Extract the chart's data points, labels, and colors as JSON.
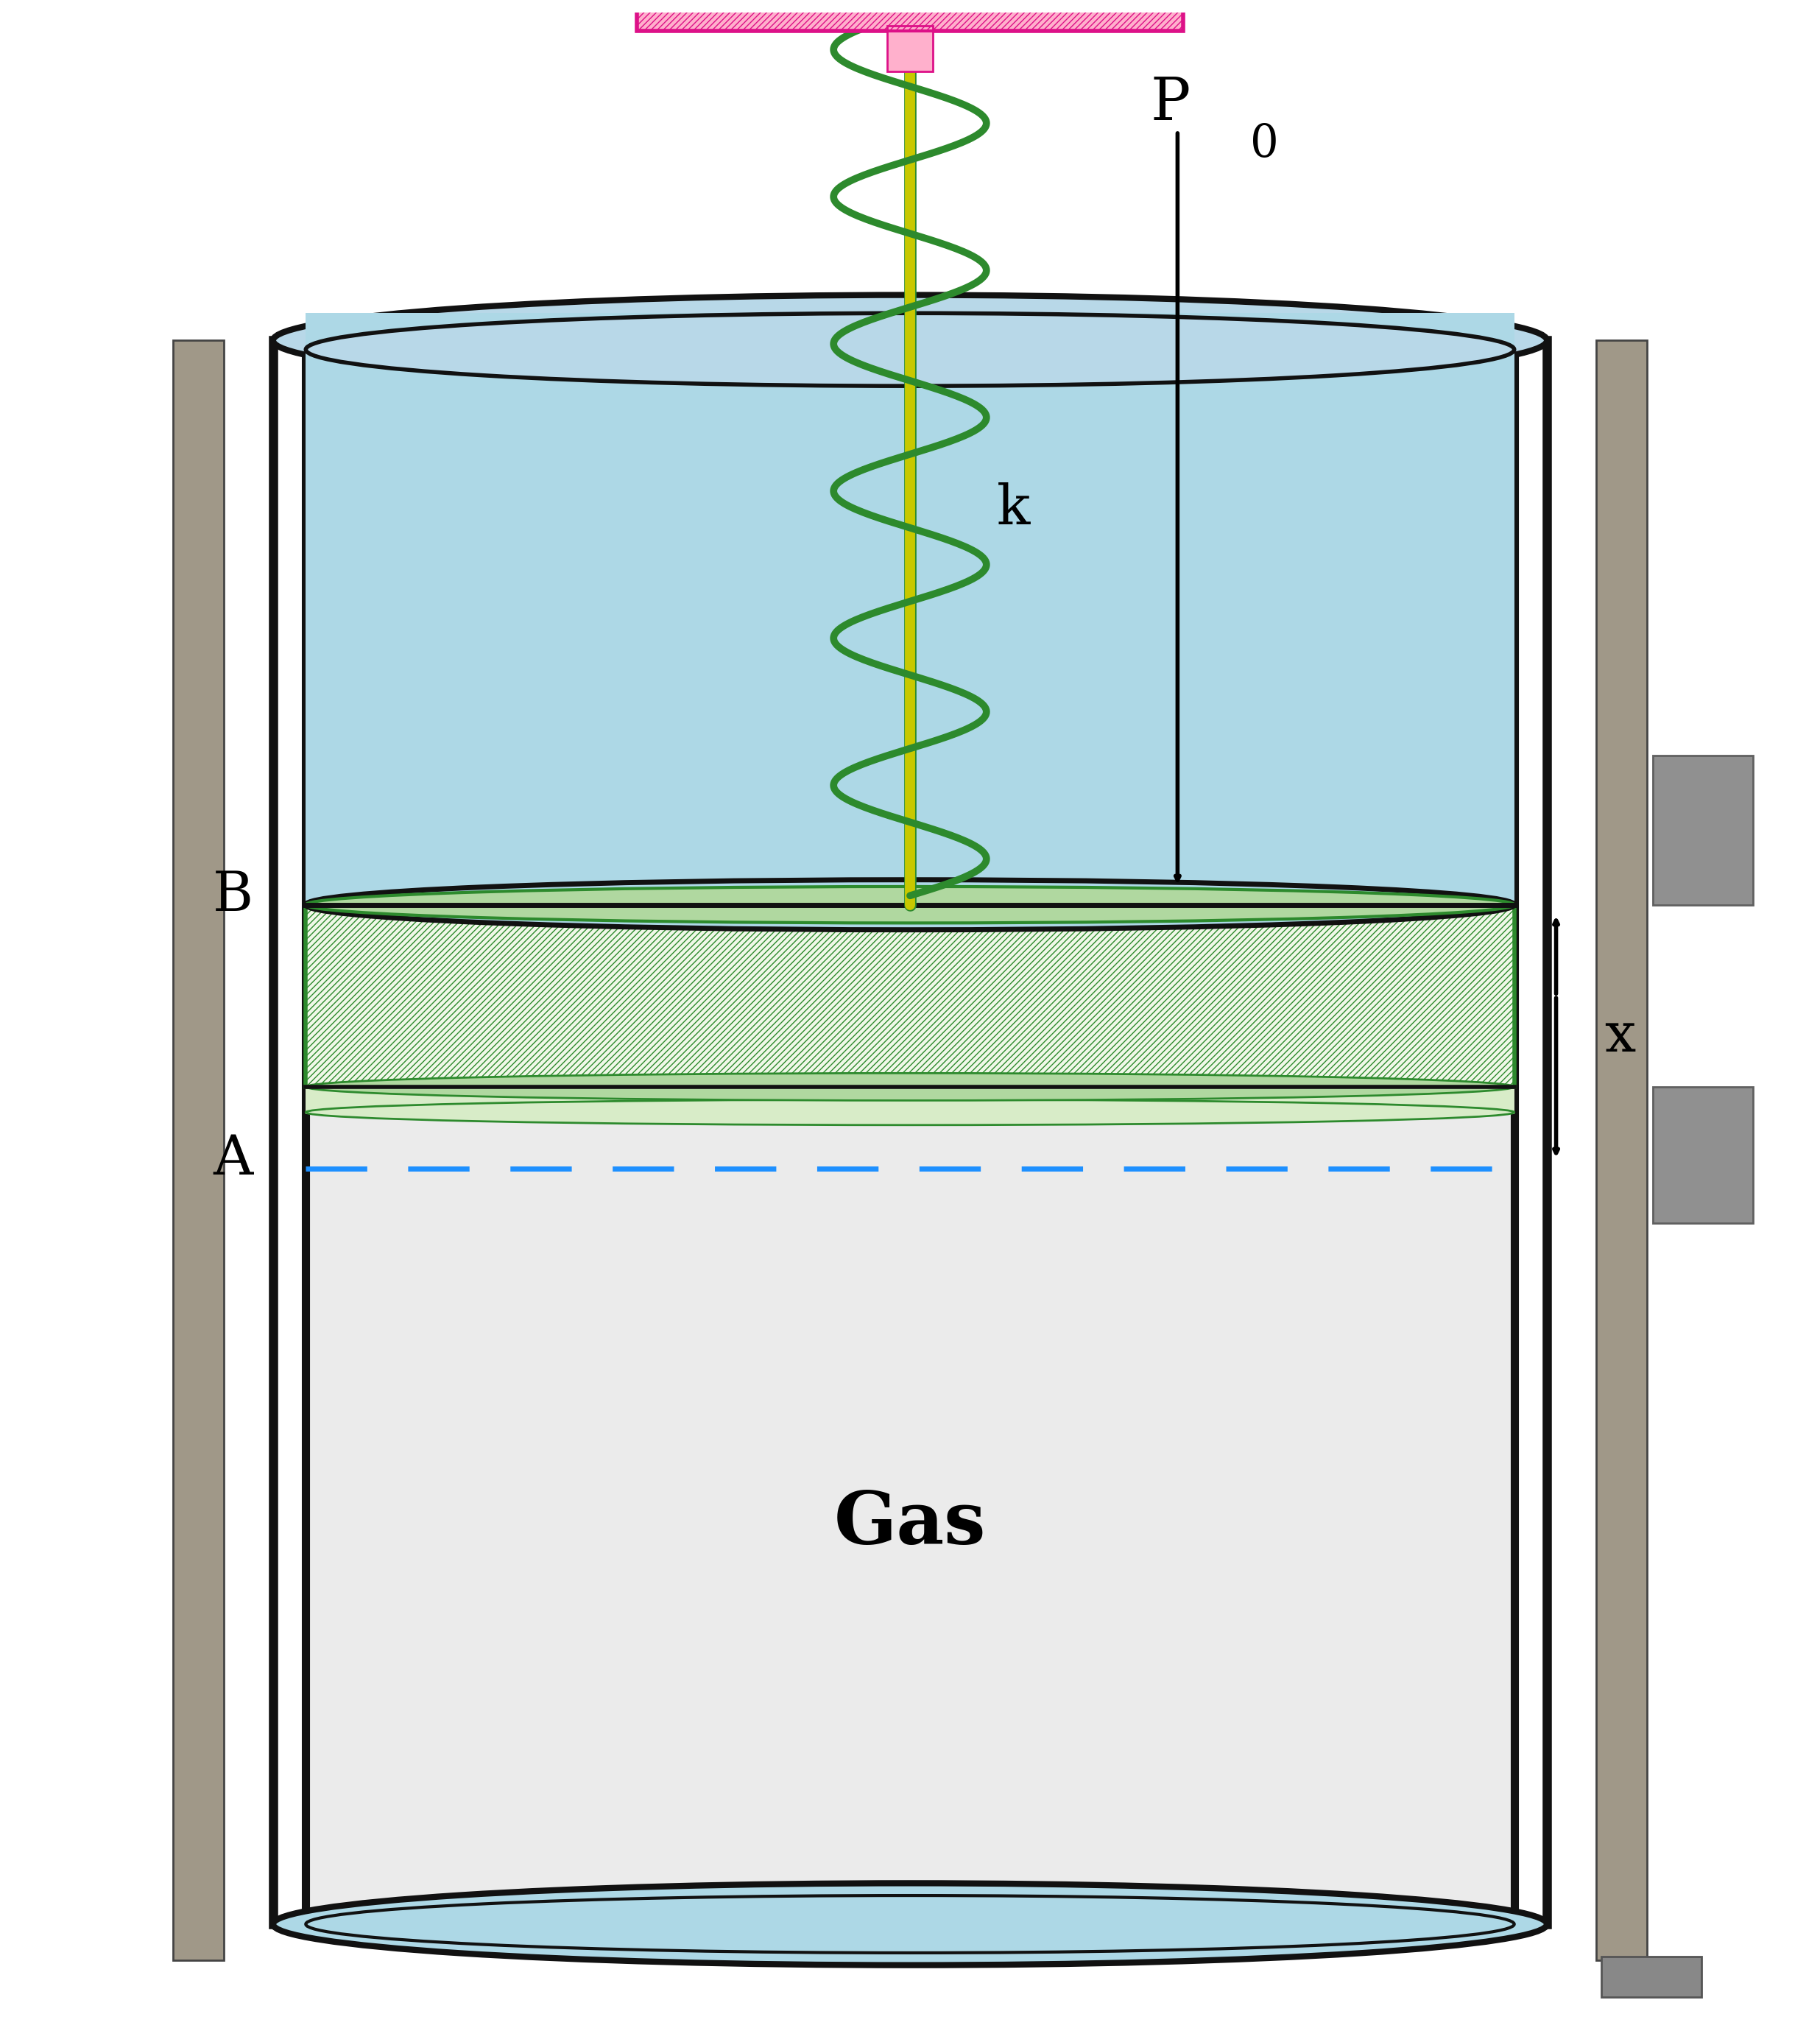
{
  "fig_width": 24.72,
  "fig_height": 27.54,
  "bg_color": "#ffffff",
  "gas_label": "Gas",
  "gas_label_fontsize": 72,
  "gas_color": "#ebebeb",
  "label_A": "A",
  "label_B": "B",
  "label_P0": "P",
  "label_P0_sub": "0",
  "label_k": "k",
  "label_x": "x",
  "label_fontsize": 54,
  "piston_top_color": "#add8e6",
  "piston_hatch_color": "#2d8a2d",
  "spring_color": "#2d8a2d",
  "ceiling_fill": "#ffb0cc",
  "ceiling_hatch_color": "#dd1188",
  "bottom_ellipse_color": "#add8e6",
  "dashed_line_color": "#1e90ff",
  "wall_color": "#111111",
  "rod_color": "#c8c800",
  "gray_col_color": "#a09888"
}
